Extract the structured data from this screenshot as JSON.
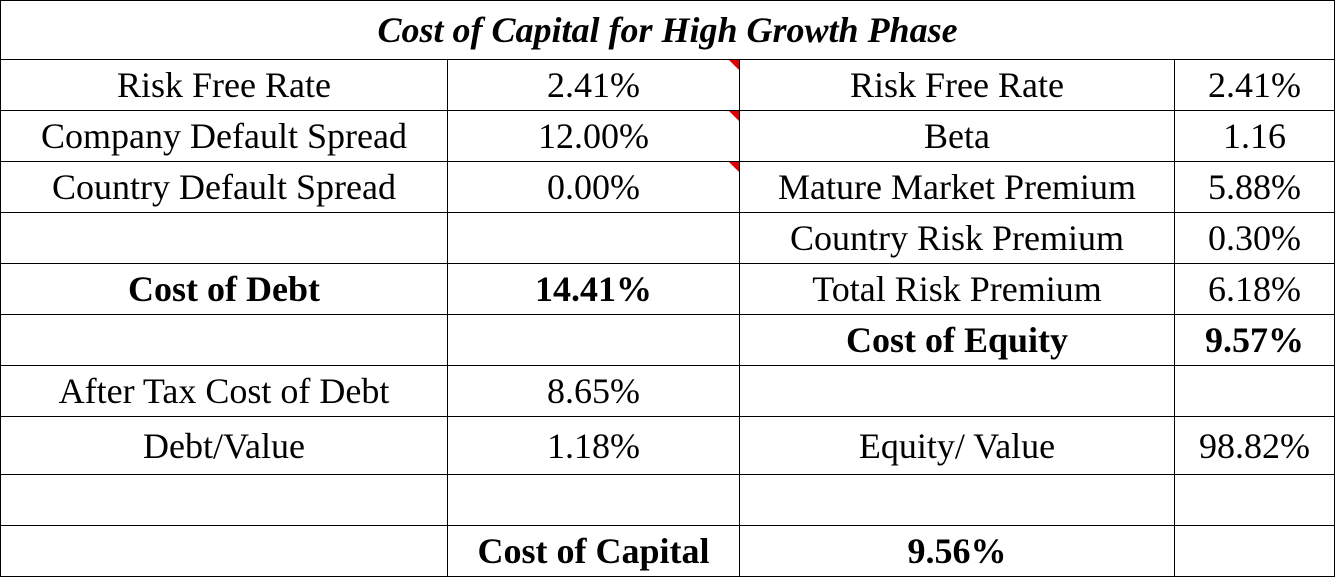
{
  "title": "Cost of Capital for High Growth Phase",
  "debt": {
    "risk_free_label": "Risk Free Rate",
    "risk_free_value": "2.41%",
    "company_spread_label": "Company Default Spread",
    "company_spread_value": "12.00%",
    "country_spread_label": "Country Default Spread",
    "country_spread_value": "0.00%",
    "cost_label": "Cost of Debt",
    "cost_value": "14.41%",
    "after_tax_label": "After Tax Cost of Debt",
    "after_tax_value": "8.65%",
    "weight_label": "Debt/Value",
    "weight_value": "1.18%"
  },
  "equity": {
    "risk_free_label": "Risk Free Rate",
    "risk_free_value": "2.41%",
    "beta_label": "Beta",
    "beta_value": "1.16",
    "mature_premium_label": "Mature Market Premium",
    "mature_premium_value": "5.88%",
    "country_premium_label": "Country Risk Premium",
    "country_premium_value": "0.30%",
    "total_premium_label": "Total Risk Premium",
    "total_premium_value": "6.18%",
    "cost_label": "Cost of Equity",
    "cost_value": "9.57%",
    "weight_label": "Equity/ Value",
    "weight_value": "98.82%"
  },
  "capital": {
    "label": "Cost of Capital",
    "value": "9.56%"
  },
  "colors": {
    "comment_indicator": "#e00000"
  }
}
